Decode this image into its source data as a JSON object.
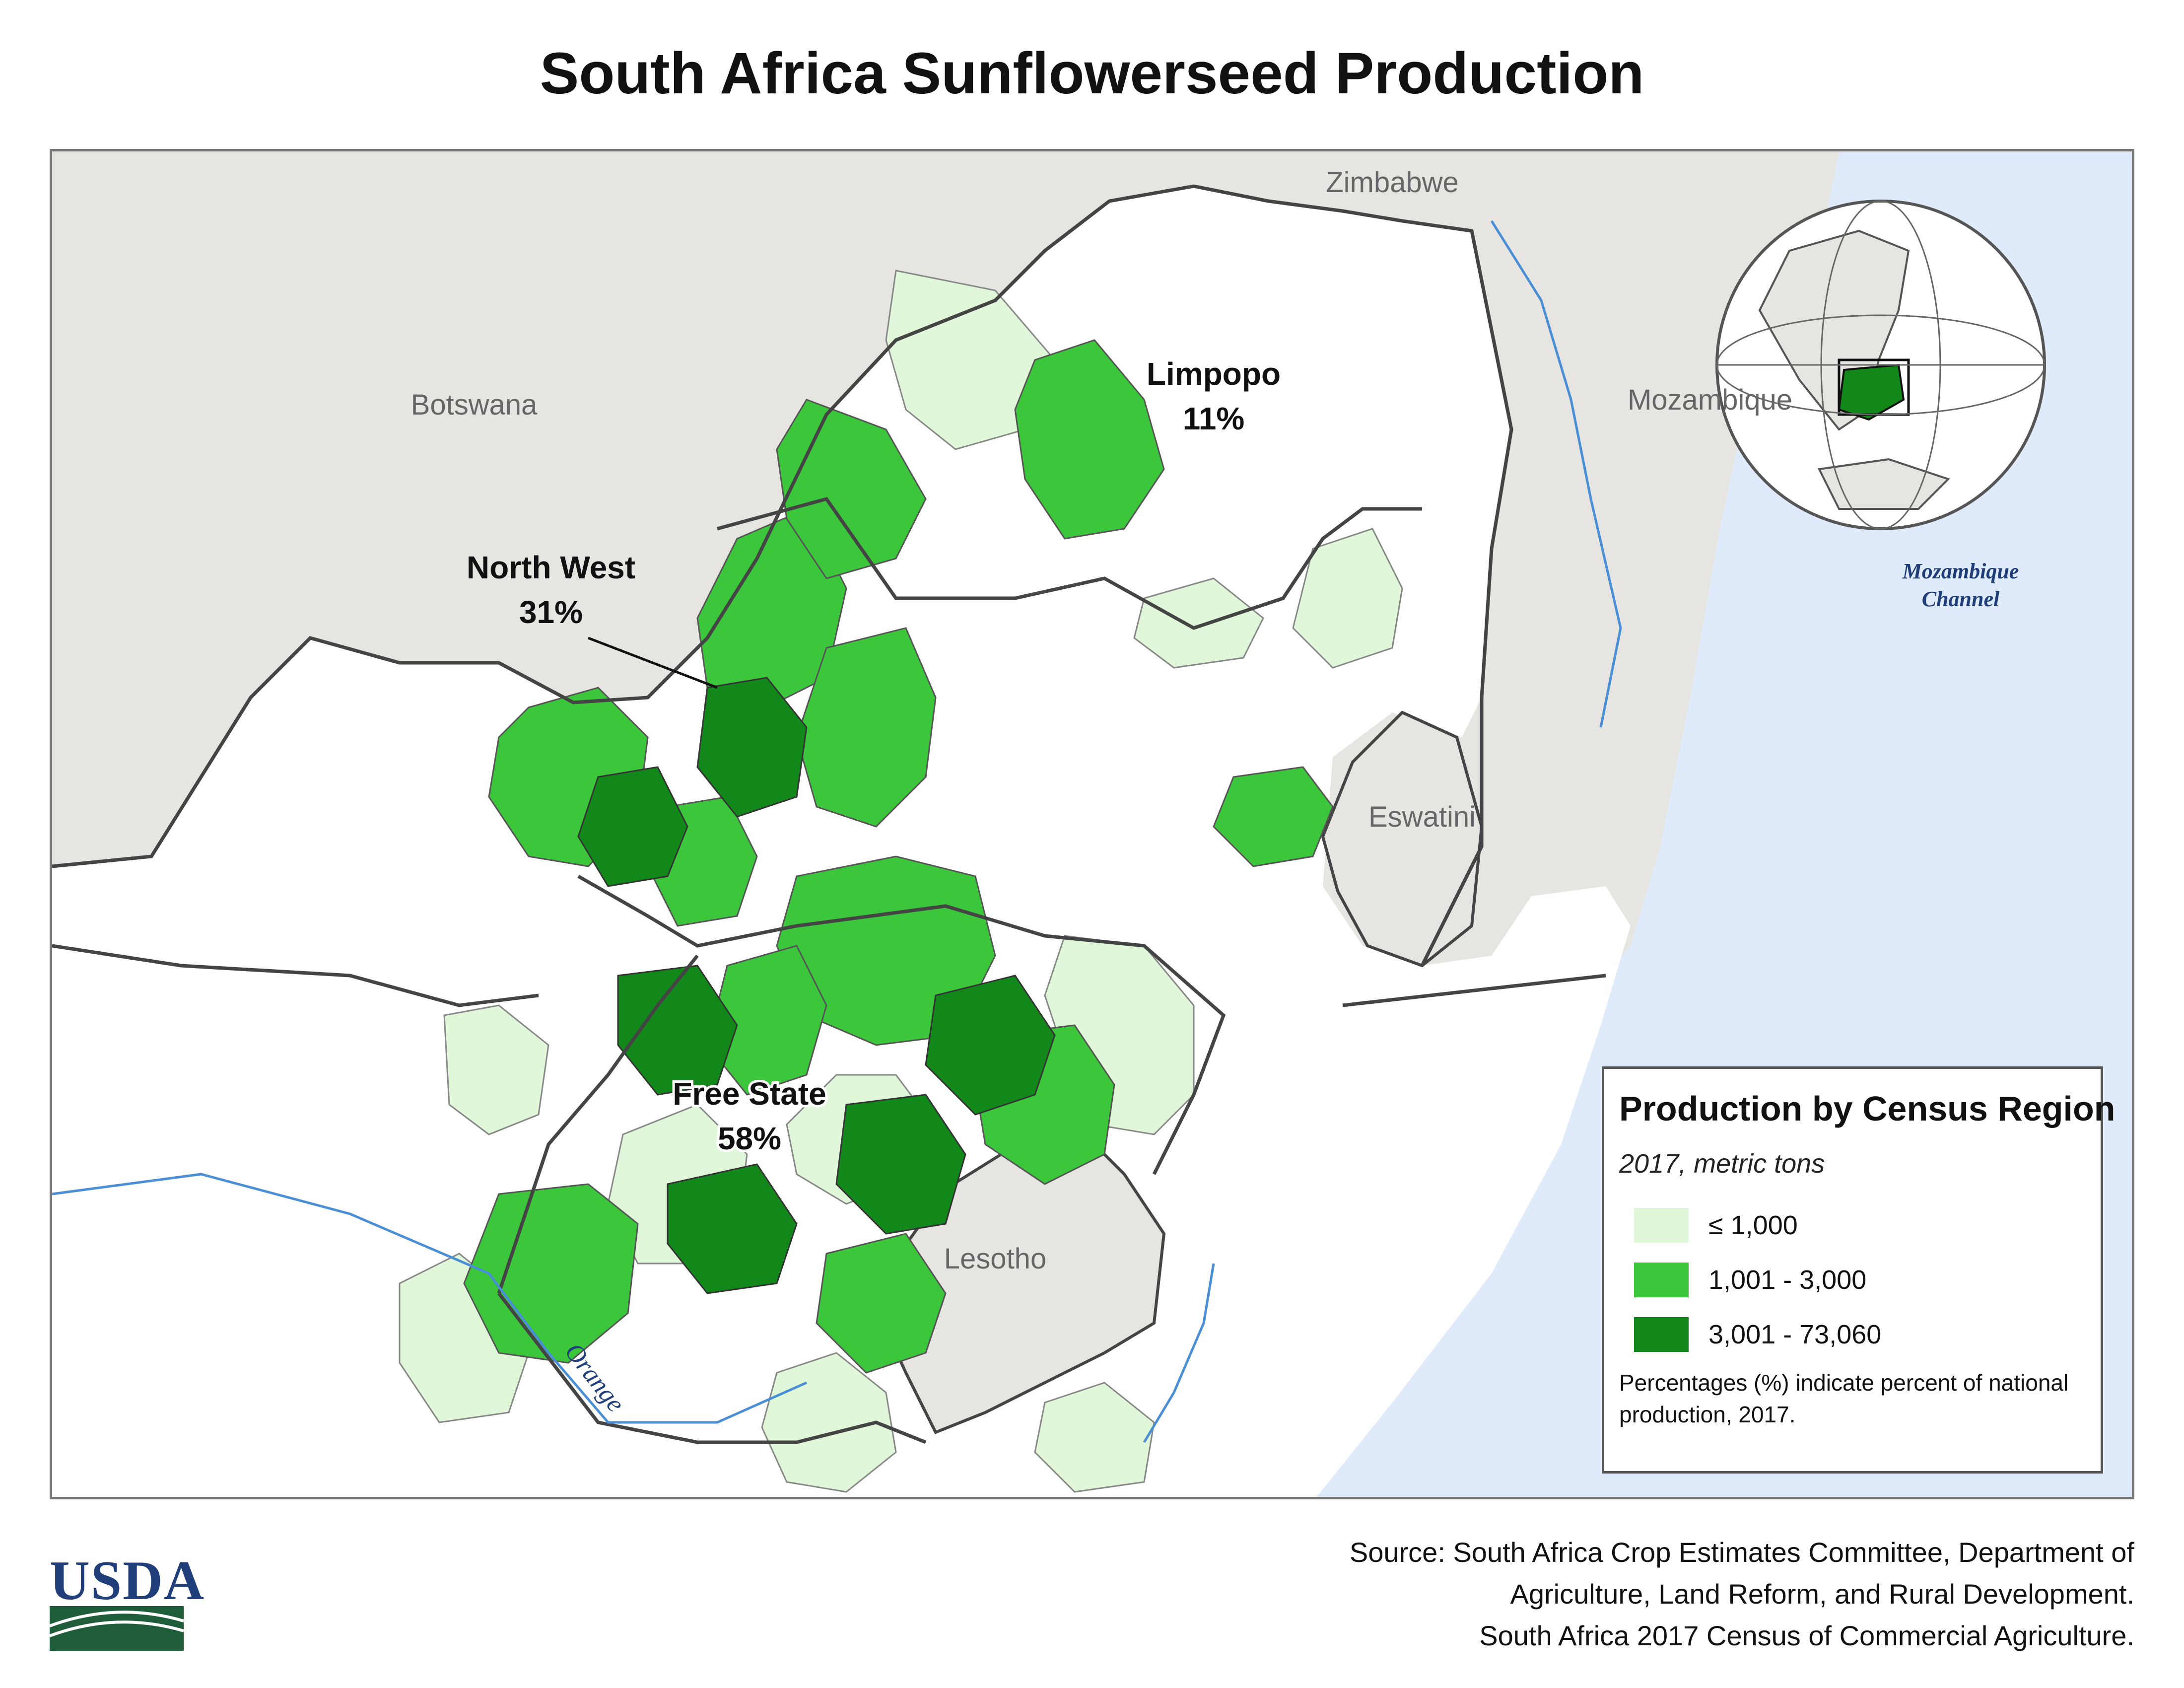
{
  "title": "South Africa Sunflowerseed Production",
  "map": {
    "countries": {
      "zimbabwe": "Zimbabwe",
      "botswana": "Botswana",
      "mozambique": "Mozambique",
      "eswatini": "Eswatini",
      "lesotho": "Lesotho"
    },
    "water": {
      "channel_line1": "Mozambique",
      "channel_line2": "Channel",
      "river": "Orange"
    },
    "provinces": [
      {
        "name": "Limpopo",
        "share": "11%"
      },
      {
        "name": "North West",
        "share": "31%"
      },
      {
        "name": "Free State",
        "share": "58%"
      }
    ]
  },
  "legend": {
    "title": "Production by Census Region",
    "subtitle": "2017, metric tons",
    "classes": [
      {
        "label": "≤ 1,000",
        "color": "#e0f8d9"
      },
      {
        "label": "1,001 - 3,000",
        "color": "#3cc63c"
      },
      {
        "label": "3,001 - 73,060",
        "color": "#12871a"
      }
    ],
    "note": "Percentages (%) indicate percent of national production, 2017."
  },
  "colors": {
    "land_sa": "#ffffff",
    "land_other": "#e6e5e1",
    "ocean": "#dfeafa",
    "border": "#444444",
    "river": "#4a8fd6",
    "low": "#e0f8d9",
    "mid": "#3cc63c",
    "high": "#12871a"
  },
  "source": {
    "line1": "Source: South Africa Crop Estimates Committee, Department of",
    "line2": "Agriculture, Land Reform, and Rural Development.",
    "line3": "South Africa 2017 Census of Commercial Agriculture."
  },
  "logo": {
    "text": "USDA"
  }
}
